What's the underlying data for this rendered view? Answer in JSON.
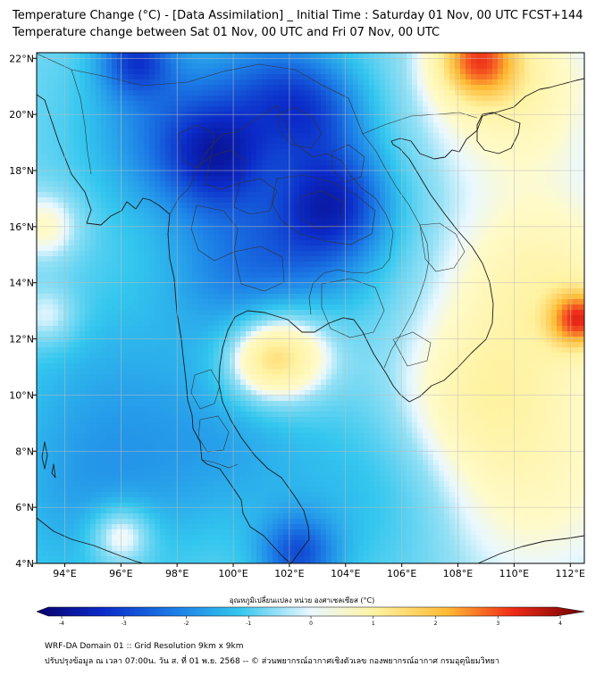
{
  "title_line1": "Temperature Change (°C) - [Data Assimilation] _ Initial Time : Saturday 01 Nov, 00 UTC FCST+144",
  "title_line2": "Temperature change between Sat 01 Nov, 00 UTC and Fri 07 Nov, 00 UTC",
  "axes": {
    "lon_ticks": [
      "94°E",
      "96°E",
      "98°E",
      "100°E",
      "102°E",
      "104°E",
      "106°E",
      "108°E",
      "110°E",
      "112°E"
    ],
    "lat_ticks": [
      "22°N",
      "20°N",
      "18°N",
      "16°N",
      "14°N",
      "12°N",
      "10°N",
      "8°N",
      "6°N",
      "4°N"
    ],
    "lon_range": [
      93,
      112.5
    ],
    "lat_range": [
      4,
      22.2
    ]
  },
  "colorbar": {
    "label": "อุณหภูมิเปลี่ยนแปลง หน่วย องศาเซลเซียส (°C)",
    "ticks": [
      "-4",
      "-3",
      "-2",
      "-1",
      "0",
      "1",
      "2",
      "3",
      "4"
    ],
    "range": [
      -4,
      4
    ]
  },
  "field_features": [
    {
      "lon": 96.5,
      "lat": 22.0,
      "value": -2.2,
      "spread": 0.9
    },
    {
      "lon": 98.0,
      "lat": 19.5,
      "value": -1.9,
      "spread": 2.2
    },
    {
      "lon": 99.5,
      "lat": 18.4,
      "value": -2.0,
      "spread": 1.3
    },
    {
      "lon": 103.0,
      "lat": 20.0,
      "value": -1.8,
      "spread": 1.4
    },
    {
      "lon": 103.6,
      "lat": 16.9,
      "value": -2.5,
      "spread": 1.4
    },
    {
      "lon": 102.5,
      "lat": 15.0,
      "value": -1.4,
      "spread": 2.0
    },
    {
      "lon": 100.0,
      "lat": 14.5,
      "value": -1.2,
      "spread": 1.8
    },
    {
      "lon": 101.5,
      "lat": 21.0,
      "value": -1.5,
      "spread": 1.5
    },
    {
      "lon": 96.0,
      "lat": 10.0,
      "value": -1.0,
      "spread": 3.0
    },
    {
      "lon": 95.0,
      "lat": 6.0,
      "value": -1.0,
      "spread": 2.5
    },
    {
      "lon": 102.3,
      "lat": 4.3,
      "value": -2.2,
      "spread": 1.0
    },
    {
      "lon": 105.0,
      "lat": 6.5,
      "value": -0.9,
      "spread": 2.5
    },
    {
      "lon": 100.0,
      "lat": 8.0,
      "value": -0.8,
      "spread": 2.0
    },
    {
      "lon": 102.0,
      "lat": 11.5,
      "value": 1.6,
      "spread": 1.2
    },
    {
      "lon": 101.0,
      "lat": 11.2,
      "value": 1.2,
      "spread": 1.0
    },
    {
      "lon": 108.7,
      "lat": 22.0,
      "value": 2.8,
      "spread": 1.0
    },
    {
      "lon": 110.0,
      "lat": 21.0,
      "value": 1.3,
      "spread": 2.2
    },
    {
      "lon": 112.3,
      "lat": 12.7,
      "value": 2.8,
      "spread": 0.7
    },
    {
      "lon": 111.0,
      "lat": 14.0,
      "value": 1.3,
      "spread": 2.5
    },
    {
      "lon": 110.5,
      "lat": 7.0,
      "value": 1.0,
      "spread": 3.0
    },
    {
      "lon": 108.5,
      "lat": 10.0,
      "value": 0.8,
      "spread": 2.0
    },
    {
      "lon": 93.3,
      "lat": 16.0,
      "value": 1.0,
      "spread": 0.9
    },
    {
      "lon": 93.4,
      "lat": 12.8,
      "value": 0.8,
      "spread": 0.8
    },
    {
      "lon": 96.0,
      "lat": 5.0,
      "value": 1.5,
      "spread": 0.8
    }
  ],
  "footer_line1": "WRF-DA Domain 01 :: Grid Resolution 9km x 9km",
  "footer_line2": "ปรับปรุงข้อมูล ณ เวลา 07:00น. วัน ส. ที่ 01 พ.ย. 2568 -- © ส่วนพยากรณ์อากาศเชิงตัวเลข กองพยากรณ์อากาศ กรมอุตุนิยมวิทยา"
}
